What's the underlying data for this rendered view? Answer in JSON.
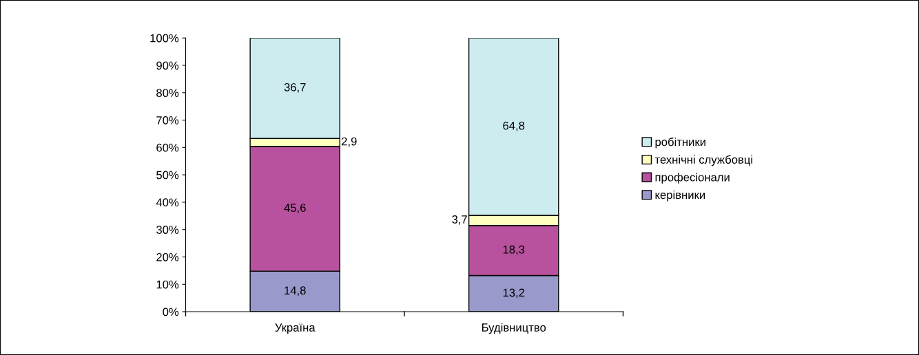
{
  "chart_data": {
    "type": "bar",
    "stacked": true,
    "categories": [
      "Україна",
      "Будівництво"
    ],
    "series": [
      {
        "name": "керівники",
        "color": "#9999cc",
        "values": [
          14.8,
          13.2
        ],
        "value_labels": [
          "14,8",
          "13,2"
        ]
      },
      {
        "name": "професіонали",
        "color": "#b8529e",
        "values": [
          45.6,
          18.3
        ],
        "value_labels": [
          "45,6",
          "18,3"
        ]
      },
      {
        "name": "технічні службовці",
        "color": "#ffffc0",
        "values": [
          2.9,
          3.7
        ],
        "value_labels": [
          "2,9",
          "3,7"
        ]
      },
      {
        "name": "робітники",
        "color": "#ccecf0",
        "values": [
          36.7,
          64.8
        ],
        "value_labels": [
          "36,7",
          "64,8"
        ]
      }
    ],
    "ylim": [
      0,
      100
    ],
    "yticks": [
      {
        "value": 0,
        "label": "0%"
      },
      {
        "value": 10,
        "label": "10%"
      },
      {
        "value": 20,
        "label": "20%"
      },
      {
        "value": 30,
        "label": "30%"
      },
      {
        "value": 40,
        "label": "40%"
      },
      {
        "value": 50,
        "label": "50%"
      },
      {
        "value": 60,
        "label": "60%"
      },
      {
        "value": 70,
        "label": "70%"
      },
      {
        "value": 80,
        "label": "80%"
      },
      {
        "value": 90,
        "label": "90%"
      },
      {
        "value": 100,
        "label": "100%"
      }
    ],
    "legend": "right",
    "grid": false
  }
}
